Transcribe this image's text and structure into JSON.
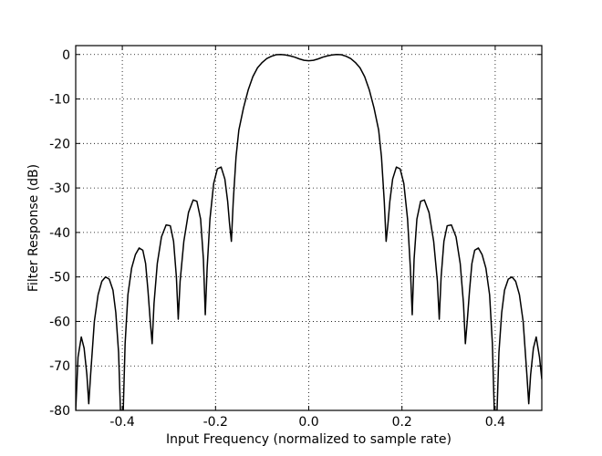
{
  "chart_data": {
    "type": "line",
    "title": "",
    "xlabel": "Input Frequency (normalized to sample rate)",
    "ylabel": "Filter Response (dB)",
    "xlim": [
      -0.5,
      0.5
    ],
    "ylim": [
      -80,
      2
    ],
    "xticks": [
      -0.4,
      -0.2,
      0.0,
      0.2,
      0.4
    ],
    "xtick_labels": [
      "-0.4",
      "-0.2",
      "0.0",
      "0.2",
      "0.4"
    ],
    "yticks": [
      0,
      -10,
      -20,
      -30,
      -40,
      -50,
      -60,
      -70,
      -80
    ],
    "ytick_labels": [
      "0",
      "-10",
      "-20",
      "-30",
      "-40",
      "-50",
      "-60",
      "-70",
      "-80"
    ],
    "grid": true,
    "grid_style": "dotted",
    "legend": "none",
    "series": [
      {
        "color": "#000000",
        "points": [
          [
            -0.5,
            -80
          ],
          [
            -0.495,
            -68
          ],
          [
            -0.488,
            -63.5
          ],
          [
            -0.482,
            -66
          ],
          [
            -0.476,
            -72
          ],
          [
            -0.472,
            -78.5
          ],
          [
            -0.468,
            -72
          ],
          [
            -0.46,
            -60
          ],
          [
            -0.452,
            -54
          ],
          [
            -0.444,
            -51
          ],
          [
            -0.436,
            -50
          ],
          [
            -0.428,
            -50.5
          ],
          [
            -0.42,
            -53
          ],
          [
            -0.414,
            -58
          ],
          [
            -0.408,
            -67
          ],
          [
            -0.404,
            -80
          ],
          [
            -0.398,
            -80
          ],
          [
            -0.394,
            -65
          ],
          [
            -0.388,
            -54
          ],
          [
            -0.38,
            -48
          ],
          [
            -0.372,
            -45
          ],
          [
            -0.364,
            -43.5
          ],
          [
            -0.356,
            -44
          ],
          [
            -0.35,
            -47
          ],
          [
            -0.345,
            -53
          ],
          [
            -0.34,
            -60
          ],
          [
            -0.336,
            -65
          ],
          [
            -0.332,
            -56
          ],
          [
            -0.325,
            -47
          ],
          [
            -0.316,
            -41
          ],
          [
            -0.306,
            -38.3
          ],
          [
            -0.297,
            -38.5
          ],
          [
            -0.29,
            -42
          ],
          [
            -0.284,
            -50
          ],
          [
            -0.28,
            -59.5
          ],
          [
            -0.276,
            -51
          ],
          [
            -0.268,
            -42
          ],
          [
            -0.258,
            -35.5
          ],
          [
            -0.248,
            -32.7
          ],
          [
            -0.24,
            -33
          ],
          [
            -0.232,
            -37
          ],
          [
            -0.226,
            -46
          ],
          [
            -0.222,
            -58.5
          ],
          [
            -0.218,
            -48
          ],
          [
            -0.212,
            -37
          ],
          [
            -0.204,
            -29
          ],
          [
            -0.196,
            -25.7
          ],
          [
            -0.188,
            -25.3
          ],
          [
            -0.18,
            -28
          ],
          [
            -0.174,
            -33
          ],
          [
            -0.17,
            -38
          ],
          [
            -0.166,
            -42
          ],
          [
            -0.162,
            -33
          ],
          [
            -0.156,
            -23
          ],
          [
            -0.15,
            -17
          ],
          [
            -0.14,
            -12
          ],
          [
            -0.13,
            -8
          ],
          [
            -0.12,
            -5
          ],
          [
            -0.11,
            -3
          ],
          [
            -0.1,
            -1.8
          ],
          [
            -0.09,
            -0.9
          ],
          [
            -0.08,
            -0.4
          ],
          [
            -0.07,
            -0.05
          ],
          [
            -0.06,
            0
          ],
          [
            -0.05,
            -0.1
          ],
          [
            -0.04,
            -0.3
          ],
          [
            -0.03,
            -0.6
          ],
          [
            -0.02,
            -1.0
          ],
          [
            -0.01,
            -1.3
          ],
          [
            0.0,
            -1.4
          ],
          [
            0.01,
            -1.3
          ],
          [
            0.02,
            -1.0
          ],
          [
            0.03,
            -0.6
          ],
          [
            0.04,
            -0.3
          ],
          [
            0.05,
            -0.1
          ],
          [
            0.06,
            0
          ],
          [
            0.07,
            -0.05
          ],
          [
            0.08,
            -0.4
          ],
          [
            0.09,
            -0.9
          ],
          [
            0.1,
            -1.8
          ],
          [
            0.11,
            -3
          ],
          [
            0.12,
            -5
          ],
          [
            0.13,
            -8
          ],
          [
            0.14,
            -12
          ],
          [
            0.15,
            -17
          ],
          [
            0.156,
            -23
          ],
          [
            0.162,
            -33
          ],
          [
            0.166,
            -42
          ],
          [
            0.17,
            -38
          ],
          [
            0.174,
            -33
          ],
          [
            0.18,
            -28
          ],
          [
            0.188,
            -25.3
          ],
          [
            0.196,
            -25.7
          ],
          [
            0.204,
            -29
          ],
          [
            0.212,
            -37
          ],
          [
            0.218,
            -48
          ],
          [
            0.222,
            -58.5
          ],
          [
            0.226,
            -46
          ],
          [
            0.232,
            -37
          ],
          [
            0.24,
            -33
          ],
          [
            0.248,
            -32.7
          ],
          [
            0.258,
            -35.5
          ],
          [
            0.268,
            -42
          ],
          [
            0.276,
            -51
          ],
          [
            0.28,
            -59.5
          ],
          [
            0.284,
            -50
          ],
          [
            0.29,
            -42
          ],
          [
            0.297,
            -38.5
          ],
          [
            0.306,
            -38.3
          ],
          [
            0.316,
            -41
          ],
          [
            0.325,
            -47
          ],
          [
            0.332,
            -56
          ],
          [
            0.336,
            -65
          ],
          [
            0.34,
            -60
          ],
          [
            0.345,
            -53
          ],
          [
            0.35,
            -47
          ],
          [
            0.356,
            -44
          ],
          [
            0.364,
            -43.5
          ],
          [
            0.372,
            -45
          ],
          [
            0.38,
            -48
          ],
          [
            0.388,
            -54
          ],
          [
            0.394,
            -65
          ],
          [
            0.398,
            -80
          ],
          [
            0.404,
            -80
          ],
          [
            0.408,
            -67
          ],
          [
            0.414,
            -58
          ],
          [
            0.42,
            -53
          ],
          [
            0.428,
            -50.5
          ],
          [
            0.436,
            -50
          ],
          [
            0.444,
            -51
          ],
          [
            0.452,
            -54
          ],
          [
            0.46,
            -60
          ],
          [
            0.468,
            -72
          ],
          [
            0.472,
            -78.5
          ],
          [
            0.476,
            -72
          ],
          [
            0.482,
            -66
          ],
          [
            0.488,
            -63.5
          ],
          [
            0.495,
            -68
          ],
          [
            0.5,
            -73
          ]
        ]
      }
    ]
  }
}
